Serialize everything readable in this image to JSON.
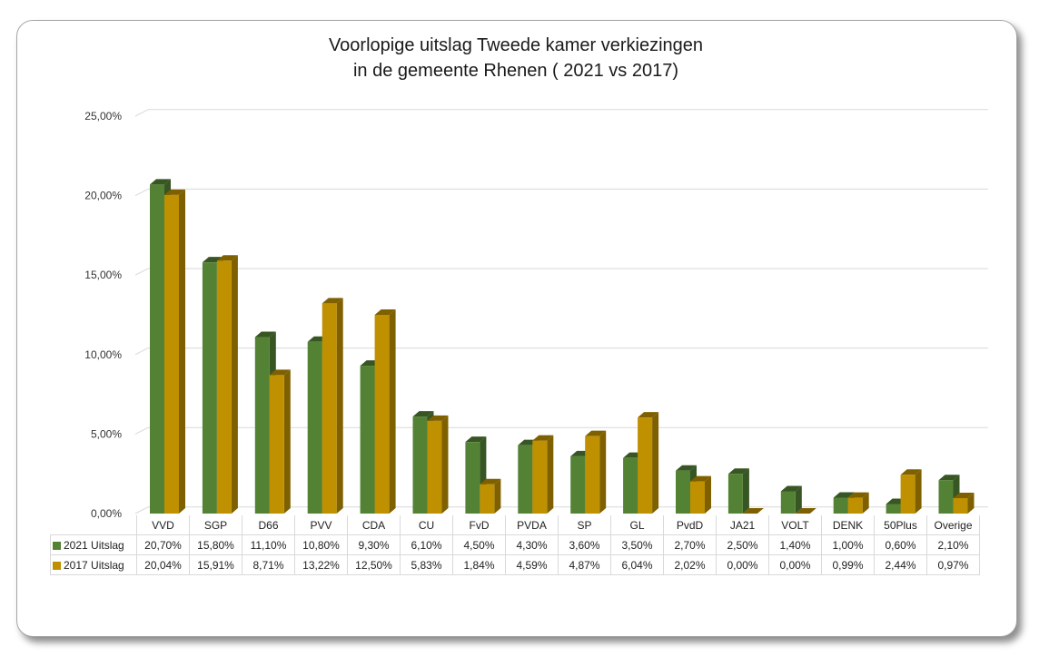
{
  "chart_data": {
    "type": "bar",
    "title": "Voorlopige uitslag Tweede kamer verkiezingen",
    "subtitle": "in de gemeente Rhenen ( 2021 vs 2017)",
    "categories": [
      "VVD",
      "SGP",
      "D66",
      "PVV",
      "CDA",
      "CU",
      "FvD",
      "PVDA",
      "SP",
      "GL",
      "PvdD",
      "JA21",
      "VOLT",
      "DENK",
      "50Plus",
      "Overige"
    ],
    "series": [
      {
        "name": "2021 Uitslag",
        "color": "#548235",
        "side": "#375623",
        "values": [
          20.7,
          15.8,
          11.1,
          10.8,
          9.3,
          6.1,
          4.5,
          4.3,
          3.6,
          3.5,
          2.7,
          2.5,
          1.4,
          1.0,
          0.6,
          2.1
        ],
        "labels": [
          "20,70%",
          "15,80%",
          "11,10%",
          "10,80%",
          "9,30%",
          "6,10%",
          "4,50%",
          "4,30%",
          "3,60%",
          "3,50%",
          "2,70%",
          "2,50%",
          "1,40%",
          "1,00%",
          "0,60%",
          "2,10%"
        ]
      },
      {
        "name": "2017 Uitslag",
        "color": "#bf9000",
        "side": "#7f6000",
        "values": [
          20.04,
          15.91,
          8.71,
          13.22,
          12.5,
          5.83,
          1.84,
          4.59,
          4.87,
          6.04,
          2.02,
          0.0,
          0.0,
          0.99,
          2.44,
          0.97
        ],
        "labels": [
          "20,04%",
          "15,91%",
          "8,71%",
          "13,22%",
          "12,50%",
          "5,83%",
          "1,84%",
          "4,59%",
          "4,87%",
          "6,04%",
          "2,02%",
          "0,00%",
          "0,00%",
          "0,99%",
          "2,44%",
          "0,97%"
        ]
      }
    ],
    "yticks": [
      "0,00%",
      "5,00%",
      "10,00%",
      "15,00%",
      "20,00%",
      "25,00%"
    ],
    "ylim": [
      0,
      25
    ],
    "grid": true,
    "legend": "data-table"
  }
}
